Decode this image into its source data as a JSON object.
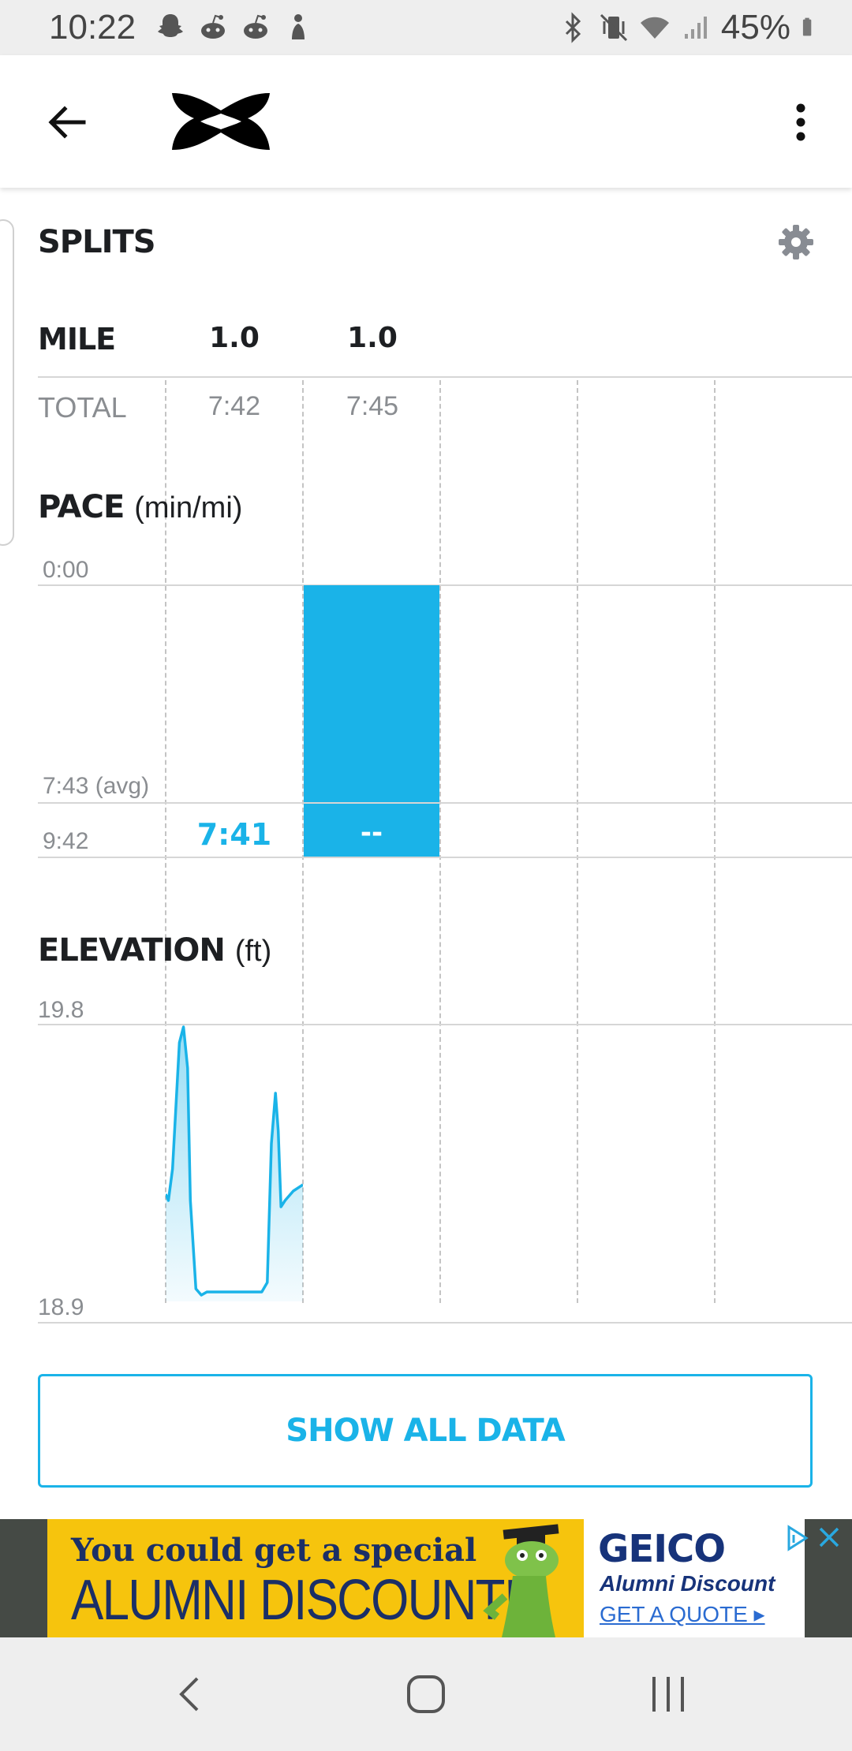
{
  "status_bar": {
    "time": "10:22",
    "battery": "45%",
    "left_icons": [
      "snapchat-icon",
      "reddit-icon",
      "reddit-icon",
      "notification-icon"
    ],
    "right_icons": [
      "bluetooth-icon",
      "vibrate-icon",
      "wifi-icon",
      "signal-icon",
      "battery-icon"
    ]
  },
  "app_bar": {
    "back_icon": "arrow-back-icon",
    "logo": "under-armour-logo",
    "menu_icon": "more-vert-icon"
  },
  "splits": {
    "title": "SPLITS",
    "settings_icon": "gear-icon",
    "mile_label": "MILE",
    "total_label": "TOTAL",
    "miles": [
      "1.0",
      "1.0"
    ],
    "totals": [
      "7:42",
      "7:45"
    ]
  },
  "pace": {
    "title": "PACE",
    "unit": "(min/mi)",
    "axis_top": "0:00",
    "avg_label": "7:43 (avg)",
    "axis_bottom": "9:42",
    "split_labels": [
      "7:41",
      "--"
    ],
    "color": "#1ab3e8"
  },
  "elevation": {
    "title": "ELEVATION",
    "unit": "(ft)",
    "axis_top": "19.8",
    "axis_bottom": "18.9",
    "color": "#1ab3e8"
  },
  "show_all_button": "SHOW ALL DATA",
  "ad": {
    "line1": "You could get a special",
    "line2": "ALUMNI DISCOUNT!",
    "brand": "GEICO",
    "brand_sub": "Alumni Discount",
    "cta": "GET A QUOTE ▸",
    "close_icon": "close-icon",
    "adchoices_icon": "adchoices-icon"
  },
  "nav_bar": {
    "back_icon": "nav-back-icon",
    "home_icon": "nav-home-icon",
    "recents_icon": "nav-recents-icon"
  },
  "chart_data": [
    {
      "type": "bar",
      "title": "PACE (min/mi)",
      "categories": [
        "1.0",
        "1.0"
      ],
      "values": [
        7.68,
        7.75
      ],
      "value_labels": [
        "7:41",
        "--"
      ],
      "ylim_labels": [
        "0:00",
        "9:42"
      ],
      "avg_label": "7:43 (avg)"
    },
    {
      "type": "area",
      "title": "ELEVATION (ft)",
      "x": [
        0.0,
        0.02,
        0.05,
        0.1,
        0.13,
        0.16,
        0.18,
        0.22,
        0.26,
        0.3,
        0.5,
        0.7,
        0.74,
        0.77,
        0.8,
        0.82,
        0.84,
        0.87,
        0.93,
        1.0
      ],
      "y": [
        19.24,
        19.22,
        19.32,
        19.72,
        19.77,
        19.64,
        19.22,
        18.94,
        18.92,
        18.93,
        18.93,
        18.93,
        18.96,
        19.4,
        19.56,
        19.44,
        19.2,
        19.22,
        19.25,
        19.27
      ],
      "ylim": [
        18.9,
        19.8
      ],
      "axis_labels": [
        "19.8",
        "18.9"
      ]
    }
  ]
}
